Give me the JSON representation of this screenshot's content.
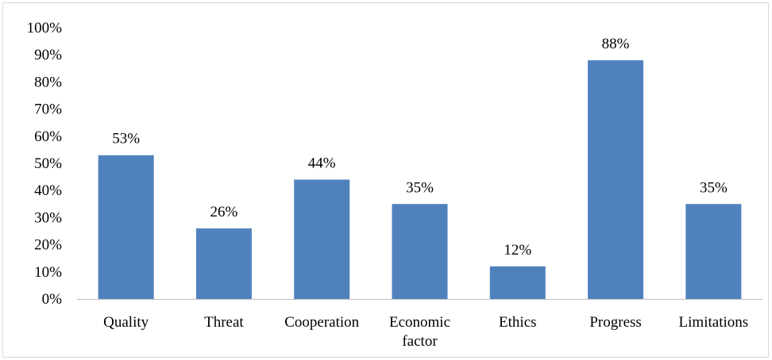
{
  "chart_data": {
    "type": "bar",
    "categories": [
      "Quality",
      "Threat",
      "Cooperation",
      "Economic factor",
      "Ethics",
      "Progress",
      "Limitations"
    ],
    "category_lines": [
      [
        "Quality"
      ],
      [
        "Threat"
      ],
      [
        "Cooperation"
      ],
      [
        "Economic",
        "factor"
      ],
      [
        "Ethics"
      ],
      [
        "Progress"
      ],
      [
        "Limitations"
      ]
    ],
    "values": [
      53,
      26,
      44,
      35,
      12,
      88,
      35
    ],
    "data_labels": [
      "53%",
      "26%",
      "44%",
      "35%",
      "12%",
      "88%",
      "35%"
    ],
    "yticks": [
      "0%",
      "10%",
      "20%",
      "30%",
      "40%",
      "50%",
      "60%",
      "70%",
      "80%",
      "90%",
      "100%"
    ],
    "ylim": [
      0,
      100
    ],
    "title": "",
    "xlabel": "",
    "ylabel": "",
    "grid": false,
    "legend": "none",
    "bar_color": "#4f81bd",
    "axis_color": "#bfbfbf"
  }
}
